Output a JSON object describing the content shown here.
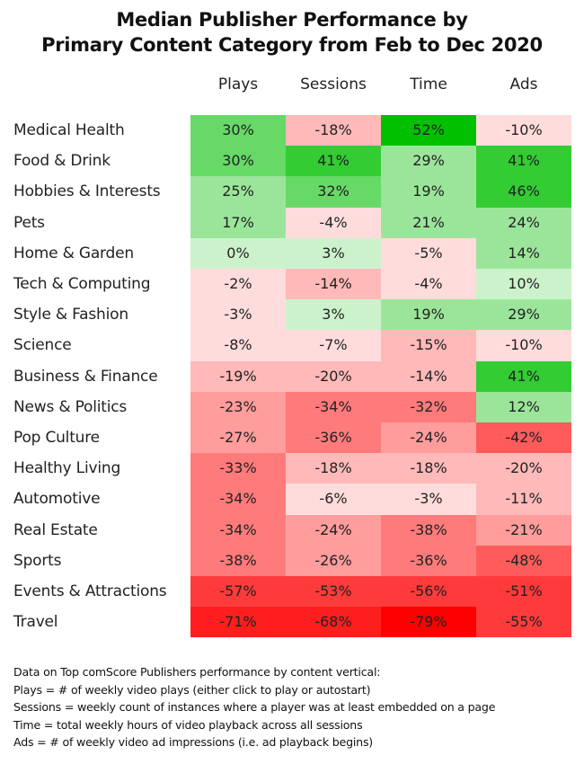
{
  "chart_data": {
    "type": "heatmap",
    "title": [
      "Median Publisher Performance by",
      "Primary Content Category from Feb to Dec 2020"
    ],
    "columns": [
      "Plays",
      "Sessions",
      "Time",
      "Ads"
    ],
    "rows": [
      {
        "label": "Medical Health",
        "values": [
          30,
          -18,
          52,
          -10
        ]
      },
      {
        "label": "Food & Drink",
        "values": [
          30,
          41,
          29,
          41
        ]
      },
      {
        "label": "Hobbies & Interests",
        "values": [
          25,
          32,
          19,
          46
        ]
      },
      {
        "label": "Pets",
        "values": [
          17,
          -4,
          21,
          24
        ]
      },
      {
        "label": "Home & Garden",
        "values": [
          0,
          3,
          -5,
          14
        ]
      },
      {
        "label": "Tech & Computing",
        "values": [
          -2,
          -14,
          -4,
          10
        ]
      },
      {
        "label": "Style & Fashion",
        "values": [
          -3,
          3,
          19,
          29
        ]
      },
      {
        "label": "Science",
        "values": [
          -8,
          -7,
          -15,
          -10
        ]
      },
      {
        "label": "Business & Finance",
        "values": [
          -19,
          -20,
          -14,
          41
        ]
      },
      {
        "label": "News & Politics",
        "values": [
          -23,
          -34,
          -32,
          12
        ]
      },
      {
        "label": "Pop Culture",
        "values": [
          -27,
          -36,
          -24,
          -42
        ]
      },
      {
        "label": "Healthy Living",
        "values": [
          -33,
          -18,
          -18,
          -20
        ]
      },
      {
        "label": "Automotive",
        "values": [
          -34,
          -6,
          -3,
          -11
        ]
      },
      {
        "label": "Real Estate",
        "values": [
          -34,
          -24,
          -38,
          -21
        ]
      },
      {
        "label": "Sports",
        "values": [
          -38,
          -26,
          -36,
          -48
        ]
      },
      {
        "label": "Events & Attractions",
        "values": [
          -57,
          -53,
          -56,
          -51
        ]
      },
      {
        "label": "Travel",
        "values": [
          -71,
          -68,
          -79,
          -55
        ]
      }
    ],
    "value_suffix": "%",
    "color_scale": {
      "positive": [
        "#ccf2cc",
        "#9be59b",
        "#66d966",
        "#33cc33",
        "#00c000"
      ],
      "negative": [
        "#ffdcdc",
        "#ffb9b9",
        "#ff9c9c",
        "#ff7b7b",
        "#ff5b5b",
        "#ff3a3a",
        "#ff1e1e",
        "#ff0000"
      ]
    }
  },
  "footnotes": [
    "Data on Top comScore Publishers performance by content vertical:",
    "Plays = # of weekly video plays (either click to play or autostart)",
    "Sessions = weekly count of instances where a player was at least embedded on a page",
    "Time = total weekly hours of video playback across all sessions",
    "Ads = # of weekly video ad impressions (i.e. ad playback begins)"
  ]
}
